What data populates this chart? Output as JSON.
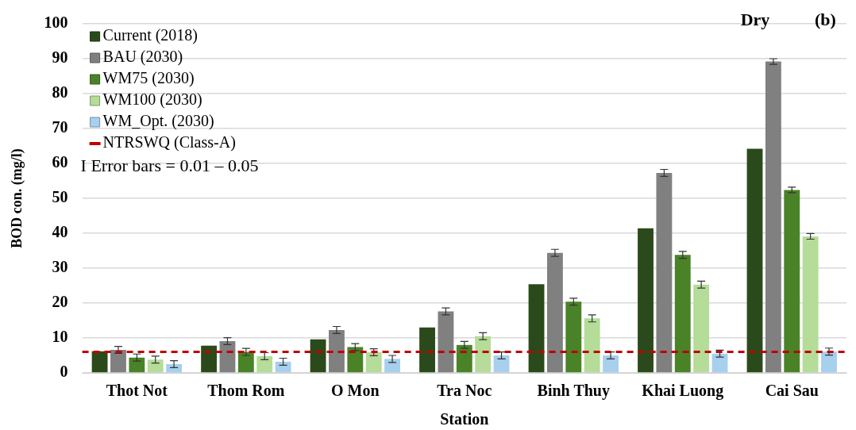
{
  "chart_data": {
    "type": "bar",
    "title": "Dry",
    "xlabel": "Station",
    "ylabel": "BOD con. (mg/l)",
    "categories": [
      "Thot Not",
      "Thom Rom",
      "O Mon",
      "Tra Noc",
      "Binh Thuy",
      "Khai Luong",
      "Cai Sau"
    ],
    "series": [
      {
        "name": "Current (2018)",
        "color": "#2b4a1b",
        "values": [
          6.2,
          7.8,
          9.6,
          13.0,
          25.4,
          41.4,
          64.2
        ]
      },
      {
        "name": "BAU (2030)",
        "color": "#808080",
        "values": [
          6.6,
          9.1,
          12.3,
          17.6,
          34.4,
          57.3,
          89.2
        ],
        "errors": [
          1,
          1,
          1,
          1,
          1,
          1,
          0.8
        ]
      },
      {
        "name": "WM75 (2030)",
        "color": "#4a8228",
        "values": [
          4.4,
          6.0,
          7.4,
          8.0,
          20.4,
          33.8,
          52.4
        ],
        "errors": [
          1,
          1,
          1,
          1,
          1,
          1,
          0.8
        ]
      },
      {
        "name": "WM100 (2030)",
        "color": "#b5dc98",
        "values": [
          3.8,
          4.8,
          5.9,
          10.5,
          15.6,
          25.3,
          39.1
        ],
        "errors": [
          1,
          1,
          1,
          1,
          1,
          1,
          0.8
        ]
      },
      {
        "name": "WM_Opt. (2030)",
        "color": "#a7cfee",
        "values": [
          2.5,
          3.2,
          4.0,
          5.0,
          5.0,
          5.5,
          6.1
        ],
        "errors": [
          1,
          1,
          1,
          1,
          1,
          1,
          1
        ]
      }
    ],
    "ref_lines": [
      {
        "axis": "y",
        "value": 6,
        "label": "NTRSWQ (Class-A)",
        "color": "#c00000",
        "line_style": "dashed"
      }
    ],
    "annotations": [
      "(b)",
      "I Error bars = 0.01 – 0.05"
    ],
    "ylim": [
      0,
      100
    ],
    "yticks": [
      0,
      10,
      20,
      30,
      40,
      50,
      60,
      70,
      80,
      90,
      100
    ],
    "grid": "y",
    "legend": "top left"
  }
}
